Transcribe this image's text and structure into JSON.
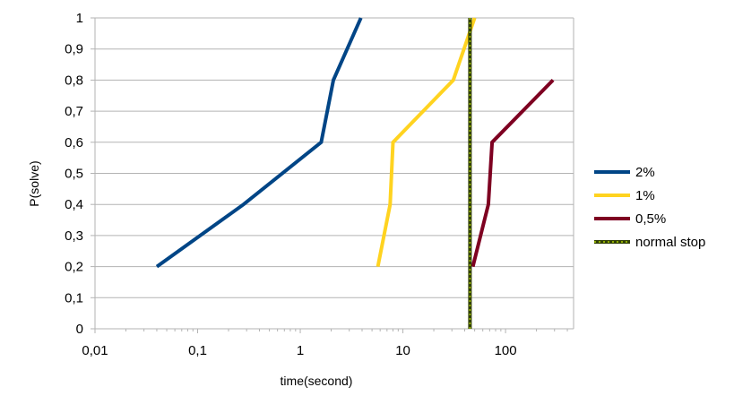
{
  "chart_data": {
    "type": "line",
    "title": "",
    "xlabel": "time(second)",
    "ylabel": "P(solve)",
    "x_scale": "log",
    "xlim": [
      0.01,
      460
    ],
    "ylim": [
      0,
      1
    ],
    "x_ticks": [
      {
        "value": 0.01,
        "label": "0,01"
      },
      {
        "value": 0.1,
        "label": "0,1"
      },
      {
        "value": 1,
        "label": "1"
      },
      {
        "value": 10,
        "label": "10"
      },
      {
        "value": 100,
        "label": "100"
      }
    ],
    "y_ticks": [
      {
        "value": 0,
        "label": "0"
      },
      {
        "value": 0.1,
        "label": "0,1"
      },
      {
        "value": 0.2,
        "label": "0,2"
      },
      {
        "value": 0.3,
        "label": "0,3"
      },
      {
        "value": 0.4,
        "label": "0,4"
      },
      {
        "value": 0.5,
        "label": "0,5"
      },
      {
        "value": 0.6,
        "label": "0,6"
      },
      {
        "value": 0.7,
        "label": "0,7"
      },
      {
        "value": 0.8,
        "label": "0,8"
      },
      {
        "value": 0.9,
        "label": "0,9"
      },
      {
        "value": 1,
        "label": "1"
      }
    ],
    "grid": "horizontal",
    "legend_position": "right",
    "series": [
      {
        "name": "2%",
        "color": "#004586",
        "points": [
          [
            0.04,
            0.2
          ],
          [
            0.28,
            0.4
          ],
          [
            1.6,
            0.6
          ],
          [
            2.1,
            0.8
          ],
          [
            3.9,
            1.0
          ]
        ]
      },
      {
        "name": "1%",
        "color": "#ffd320",
        "points": [
          [
            5.7,
            0.2
          ],
          [
            7.5,
            0.4
          ],
          [
            8.0,
            0.6
          ],
          [
            31,
            0.8
          ],
          [
            50,
            1.0
          ]
        ]
      },
      {
        "name": "0,5%",
        "color": "#7e0021",
        "points": [
          [
            48,
            0.2
          ],
          [
            68,
            0.4
          ],
          [
            74,
            0.6
          ],
          [
            290,
            0.8
          ]
        ]
      },
      {
        "name": "normal stop",
        "color": "#314004",
        "dash_color": "#aecf00",
        "points": [
          [
            45,
            0
          ],
          [
            45,
            1.0
          ]
        ]
      }
    ]
  }
}
